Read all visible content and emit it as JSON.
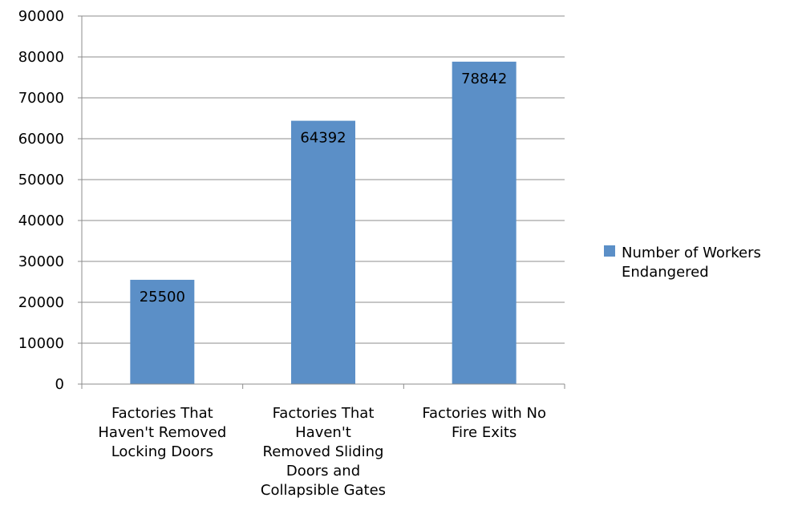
{
  "chart_data": {
    "type": "bar",
    "title": "",
    "xlabel": "",
    "ylabel": "",
    "categories": [
      [
        "Factories That",
        "Haven't Removed",
        "Locking Doors"
      ],
      [
        "Factories That",
        "Haven't",
        "Removed Sliding",
        "Doors and",
        "Collapsible Gates"
      ],
      [
        "Factories with No",
        "Fire Exits"
      ]
    ],
    "series": [
      {
        "name": [
          "Number of Workers",
          "Endangered"
        ],
        "values": [
          25500,
          64392,
          78842
        ],
        "color": "#5b8fc7"
      }
    ],
    "ylim": [
      0,
      90000
    ],
    "yticks": [
      0,
      10000,
      20000,
      30000,
      40000,
      50000,
      60000,
      70000,
      80000,
      90000
    ],
    "data_labels": [
      "25500",
      "64392",
      "78842"
    ],
    "grid": true,
    "legend_position": "right"
  },
  "colors": {
    "grid": "#8c8c8c",
    "axis": "#8c8c8c",
    "text": "#000000"
  }
}
